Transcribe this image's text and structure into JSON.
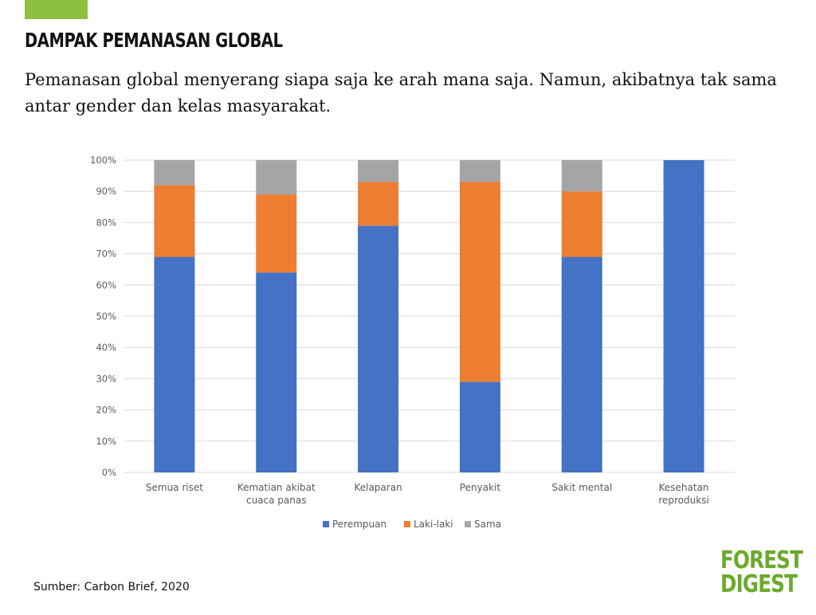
{
  "colors": {
    "accent": "#8cbf3f",
    "logo": "#6aaa2a",
    "perempuan": "#4472c4",
    "laki_laki": "#ed7d31",
    "sama": "#a5a5a5",
    "grid": "#d9d9d9"
  },
  "header": {
    "title": "DAMPAK PEMANASAN GLOBAL",
    "subtitle": "Pemanasan global menyerang siapa saja ke arah mana saja. Namun, akibatnya tak sama antar gender dan kelas masyarakat."
  },
  "footer": {
    "source": "Sumber: Carbon Brief, 2020",
    "logo_line1": "FOREST",
    "logo_line2": "DIGEST"
  },
  "chart_data": {
    "type": "bar",
    "stacked": true,
    "categories": [
      [
        "Semua riset"
      ],
      [
        "Kematian akibat",
        "cuaca panas"
      ],
      [
        "Kelaparan"
      ],
      [
        "Penyakit"
      ],
      [
        "Sakit mental"
      ],
      [
        "Kesehatan",
        "reproduksi"
      ]
    ],
    "series": [
      {
        "name": "Perempuan",
        "color": "#4472c4",
        "values": [
          69,
          64,
          79,
          29,
          69,
          100
        ]
      },
      {
        "name": "Laki-laki",
        "color": "#ed7d31",
        "values": [
          23,
          25,
          14,
          64,
          21,
          0
        ]
      },
      {
        "name": "Sama",
        "color": "#a5a5a5",
        "values": [
          8,
          11,
          7,
          7,
          10,
          0
        ]
      }
    ],
    "ylim": [
      0,
      100
    ],
    "yticks": [
      "0%",
      "10%",
      "20%",
      "30%",
      "40%",
      "50%",
      "60%",
      "70%",
      "80%",
      "90%",
      "100%"
    ],
    "grid": true,
    "legend": "bottom"
  }
}
